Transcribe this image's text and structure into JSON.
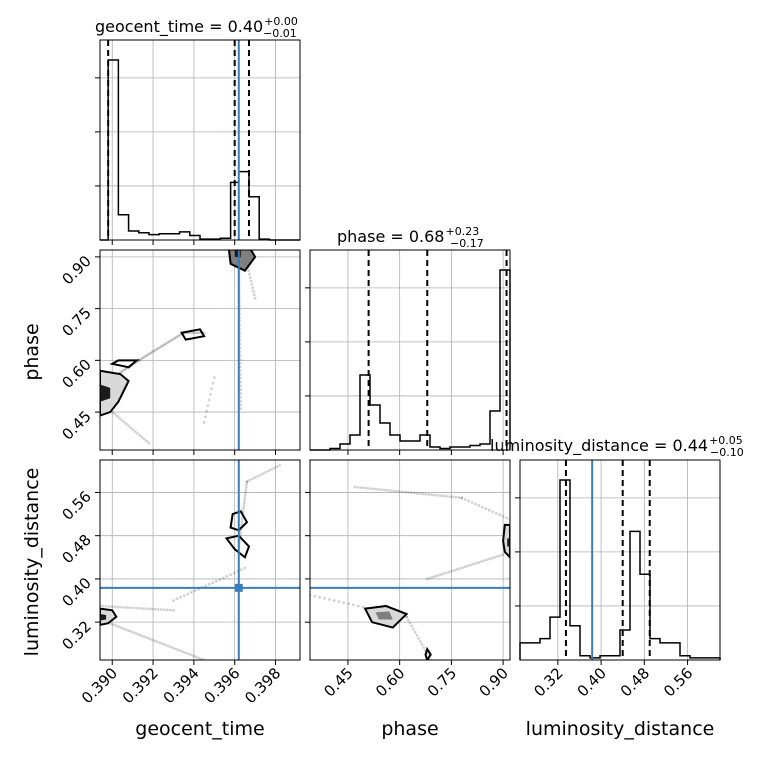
{
  "chart_data": {
    "type": "corner",
    "parameters": [
      "geocent_time",
      "phase",
      "luminosity_distance"
    ],
    "titles": {
      "geocent_time": {
        "prefix": "geocent_time = 0.40",
        "plus": "+0.00",
        "minus": "−0.01"
      },
      "phase": {
        "prefix": "phase = 0.68",
        "plus": "+0.23",
        "minus": "−0.17"
      },
      "luminosity_distance": {
        "prefix": "luminosity_distance = 0.44",
        "plus": "+0.05",
        "minus": "−0.10"
      }
    },
    "axis_labels": {
      "geocent_time": "geocent_time",
      "phase": "phase",
      "luminosity_distance": "luminosity_distance"
    },
    "ranges": {
      "geocent_time": [
        0.3894,
        0.3992
      ],
      "phase": [
        0.34,
        0.92
      ],
      "luminosity_distance": [
        0.25,
        0.62
      ]
    },
    "ticks": {
      "geocent_time": [
        "0.390",
        "0.392",
        "0.394",
        "0.396",
        "0.398"
      ],
      "phase": [
        "0.45",
        "0.60",
        "0.75",
        "0.90"
      ],
      "luminosity_distance": [
        "0.32",
        "0.40",
        "0.48",
        "0.56"
      ]
    },
    "truths": {
      "geocent_time": 0.3962,
      "phase": null,
      "luminosity_distance": 0.3835
    },
    "quantiles": {
      "geocent_time": [
        0.3898,
        0.396,
        0.3967
      ],
      "phase": [
        0.51,
        0.68,
        0.91
      ],
      "luminosity_distance": [
        0.335,
        0.44,
        0.49
      ]
    },
    "histograms": {
      "geocent_time": {
        "edges": [
          0.3894,
          0.3898,
          0.3903,
          0.3908,
          0.3913,
          0.3918,
          0.3923,
          0.3928,
          0.3933,
          0.3938,
          0.3943,
          0.3948,
          0.3953,
          0.3958,
          0.3962,
          0.3967,
          0.3972,
          0.3977,
          0.3982,
          0.3987,
          0.3992
        ],
        "counts": [
          0.0,
          100.0,
          14.0,
          5.0,
          4.0,
          3.0,
          3.5,
          3.5,
          4.5,
          2.5,
          0.5,
          0.5,
          1.0,
          32.0,
          38.0,
          24.0,
          0.5,
          0.0,
          0.0,
          0.0
        ]
      },
      "phase": {
        "edges": [
          0.34,
          0.369,
          0.398,
          0.427,
          0.456,
          0.485,
          0.514,
          0.543,
          0.572,
          0.601,
          0.63,
          0.659,
          0.688,
          0.717,
          0.746,
          0.775,
          0.804,
          0.833,
          0.862,
          0.891,
          0.92
        ],
        "counts": [
          0.0,
          0.0,
          0.5,
          2.0,
          5.0,
          25.0,
          15.0,
          9.0,
          5.0,
          3.0,
          3.0,
          5.0,
          1.0,
          0.5,
          1.0,
          1.0,
          1.5,
          2.0,
          13.0,
          60.0
        ]
      },
      "luminosity_distance": {
        "edges": [
          0.25,
          0.2685,
          0.287,
          0.3055,
          0.324,
          0.3425,
          0.361,
          0.3795,
          0.398,
          0.4165,
          0.435,
          0.4535,
          0.472,
          0.4905,
          0.509,
          0.5275,
          0.546,
          0.5645,
          0.583,
          0.6015,
          0.62
        ],
        "counts": [
          4.0,
          4.0,
          5.0,
          10.0,
          42.0,
          8.0,
          1.0,
          0.5,
          1.0,
          1.0,
          7.0,
          30.0,
          20.0,
          5.0,
          4.0,
          4.0,
          1.0,
          0.5,
          0.5,
          0.5
        ]
      }
    },
    "hist_ytick_count": 3,
    "grid": true,
    "truth_color": "#3a7dbf"
  }
}
